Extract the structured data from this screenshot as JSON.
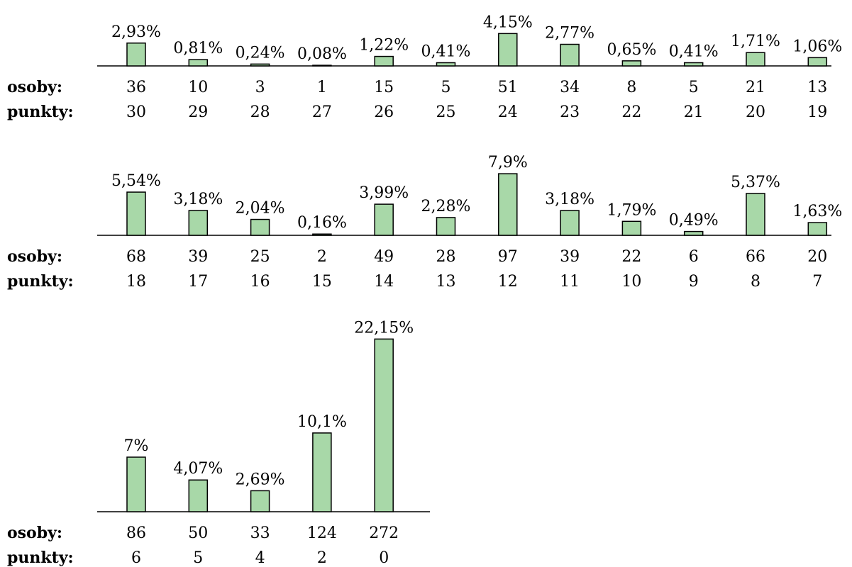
{
  "row_labels": {
    "people": "osoby:",
    "points": "punkty:"
  },
  "colors": {
    "bar_fill": "#a8d8a8",
    "bar_stroke": "#000000"
  },
  "chart_data": [
    {
      "type": "bar",
      "categories": [
        "30",
        "29",
        "28",
        "27",
        "26",
        "25",
        "24",
        "23",
        "22",
        "21",
        "20",
        "19"
      ],
      "people": [
        36,
        10,
        3,
        1,
        15,
        5,
        51,
        34,
        8,
        5,
        21,
        13
      ],
      "values": [
        2.93,
        0.81,
        0.24,
        0.08,
        1.22,
        0.41,
        4.15,
        2.77,
        0.65,
        0.41,
        1.71,
        1.06
      ],
      "value_labels": [
        "2,93%",
        "0,81%",
        "0,24%",
        "0,08%",
        "1,22%",
        "0,41%",
        "4,15%",
        "2,77%",
        "0,65%",
        "0,41%",
        "1,71%",
        "1,06%"
      ]
    },
    {
      "type": "bar",
      "categories": [
        "18",
        "17",
        "16",
        "15",
        "14",
        "13",
        "12",
        "11",
        "10",
        "9",
        "8",
        "7"
      ],
      "people": [
        68,
        39,
        25,
        2,
        49,
        28,
        97,
        39,
        22,
        6,
        66,
        20
      ],
      "values": [
        5.54,
        3.18,
        2.04,
        0.16,
        3.99,
        2.28,
        7.9,
        3.18,
        1.79,
        0.49,
        5.37,
        1.63
      ],
      "value_labels": [
        "5,54%",
        "3,18%",
        "2,04%",
        "0,16%",
        "3,99%",
        "2,28%",
        "7,9%",
        "3,18%",
        "1,79%",
        "0,49%",
        "5,37%",
        "1,63%"
      ]
    },
    {
      "type": "bar",
      "categories": [
        "6",
        "5",
        "4",
        "2",
        "0"
      ],
      "people": [
        86,
        50,
        33,
        124,
        272
      ],
      "values": [
        7,
        4.07,
        2.69,
        10.1,
        22.15
      ],
      "value_labels": [
        "7%",
        "4,07%",
        "2,69%",
        "10,1%",
        "22,15%"
      ]
    }
  ]
}
